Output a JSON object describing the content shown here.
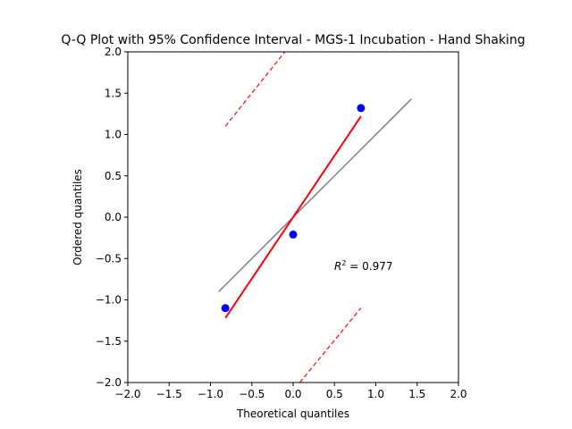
{
  "chart_data": {
    "type": "scatter",
    "title": "Q-Q Plot with 95% Confidence Interval - MGS-1 Incubation - Hand Shaking",
    "xlabel": "Theoretical quantiles",
    "ylabel": "Ordered quantiles",
    "xlim": [
      -2.0,
      2.0
    ],
    "ylim": [
      -2.0,
      2.0
    ],
    "xticks": [
      -2.0,
      -1.5,
      -1.0,
      -0.5,
      0.0,
      0.5,
      1.0,
      1.5,
      2.0
    ],
    "yticks": [
      -2.0,
      -1.5,
      -1.0,
      -0.5,
      0.0,
      0.5,
      1.0,
      1.5,
      2.0
    ],
    "xtick_labels": [
      "−2.0",
      "−1.5",
      "−1.0",
      "−0.5",
      "0.0",
      "0.5",
      "1.0",
      "1.5",
      "2.0"
    ],
    "ytick_labels": [
      "−2.0",
      "−1.5",
      "−1.0",
      "−0.5",
      "0.0",
      "0.5",
      "1.0",
      "1.5",
      "2.0"
    ],
    "grid": false,
    "points": {
      "x": [
        -0.82,
        0.0,
        0.82
      ],
      "y": [
        -1.1,
        -0.21,
        1.32
      ],
      "color": "#0000ff"
    },
    "reference_line": {
      "x": [
        -0.9,
        1.43
      ],
      "y": [
        -0.9,
        1.43
      ],
      "color": "#708090"
    },
    "fit_line": {
      "x": [
        -0.82,
        0.82
      ],
      "y": [
        -1.22,
        1.22
      ],
      "color": "#ff0000"
    },
    "ci_upper": {
      "x": [
        -0.82,
        -0.1
      ],
      "y": [
        1.1,
        2.0
      ],
      "color": "#ff0000"
    },
    "ci_lower": {
      "x": [
        0.08,
        0.82
      ],
      "y": [
        -2.0,
        -1.1
      ],
      "color": "#ff0000"
    },
    "annotation": {
      "text_base": "R",
      "text_sup": "2",
      "text_rest": " = 0.977",
      "x": 0.5,
      "y": -0.6
    }
  }
}
